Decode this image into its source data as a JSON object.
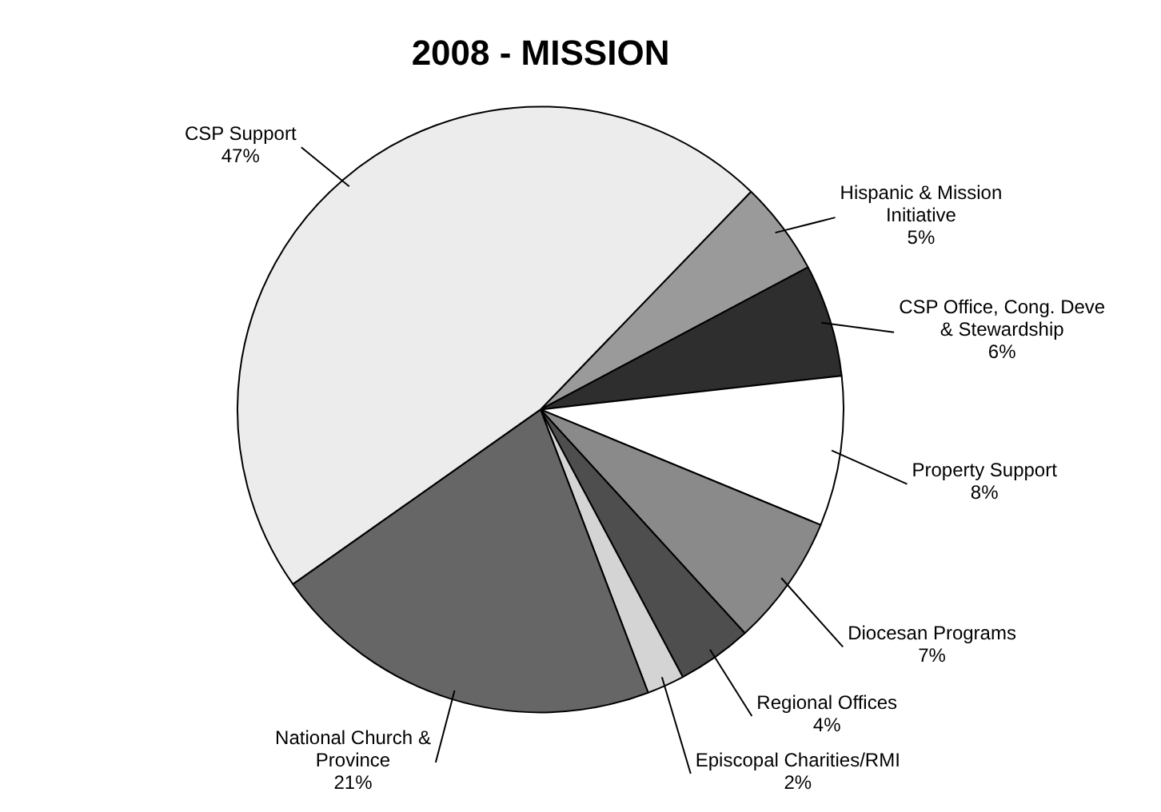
{
  "chart_data": {
    "type": "pie",
    "title": "2008 - MISSION",
    "categories": [
      "Hispanic & Mission Initiative",
      "CSP Office, Cong. Deve & Stewardship",
      "Property Support",
      "Diocesan Programs",
      "Regional Offices",
      "Episcopal Charities/RMI",
      "National Church & Province",
      "CSP Support"
    ],
    "values": [
      5,
      6,
      8,
      7,
      4,
      2,
      21,
      47
    ],
    "colors": [
      "#9a9a9a",
      "#2e2e2e",
      "#ffffff",
      "#8a8a8a",
      "#4e4e4e",
      "#d4d4d4",
      "#666666",
      "#ececec"
    ],
    "value_labels": [
      "5%",
      "6%",
      "8%",
      "7%",
      "4%",
      "2%",
      "21%",
      "47%"
    ],
    "legend": false
  }
}
